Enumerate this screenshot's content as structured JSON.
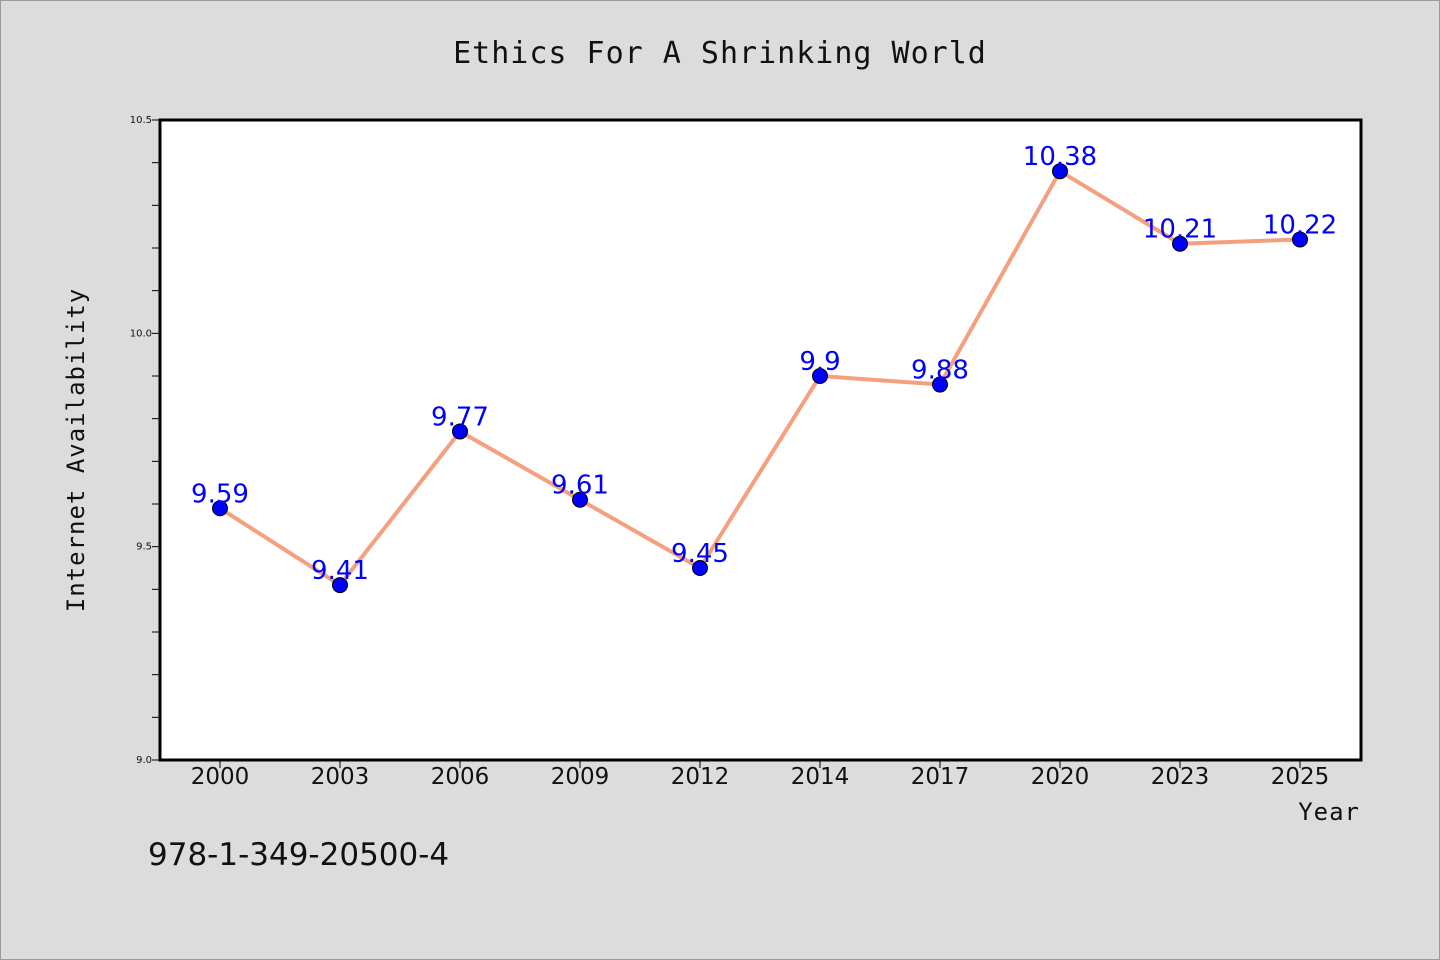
{
  "chart_data": {
    "type": "line",
    "title": "Ethics For A Shrinking World",
    "xlabel": "Year",
    "ylabel": "Internet Availability",
    "categories": [
      "2000",
      "2003",
      "2006",
      "2009",
      "2012",
      "2014",
      "2017",
      "2020",
      "2023",
      "2025"
    ],
    "series": [
      {
        "values": [
          9.59,
          9.41,
          9.77,
          9.61,
          9.45,
          9.9,
          9.88,
          10.38,
          10.21,
          10.22
        ]
      }
    ],
    "data_labels": [
      "9.59",
      "9.41",
      "9.77",
      "9.61",
      "9.45",
      "9.9",
      "9.88",
      "10.38",
      "10.21",
      "10.22"
    ],
    "ylim": [
      9.0,
      10.5
    ],
    "yticks": [
      "9.0",
      "9.5",
      "10.0",
      "10.5"
    ],
    "grid": false,
    "colors": {
      "line": "#f4a07e",
      "marker": "#0000ff",
      "label": "#0000ff",
      "background": "#dcdcdc",
      "plot_bg": "#ffffff"
    }
  },
  "footer": {
    "isbn": "978-1-349-20500-4"
  }
}
